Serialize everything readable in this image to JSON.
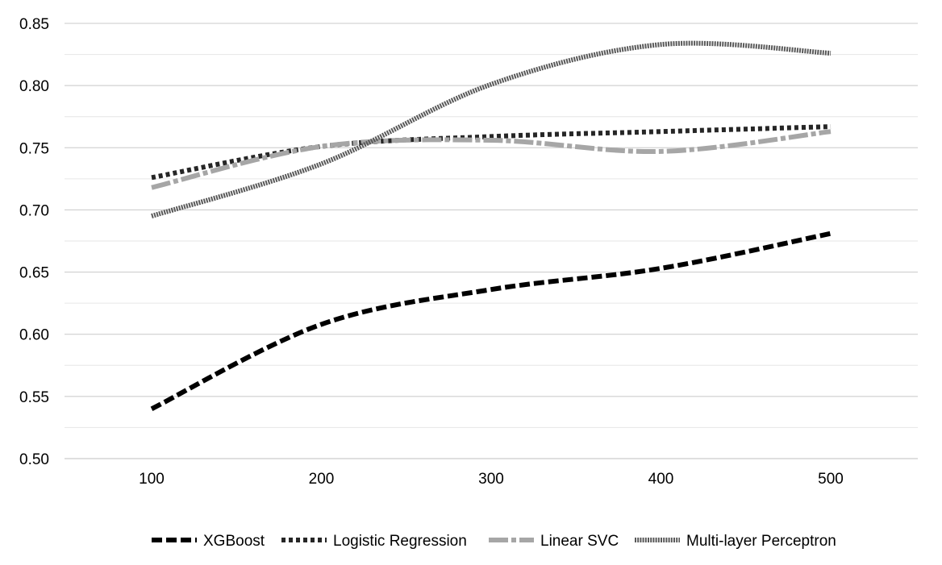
{
  "chart_data": {
    "type": "line",
    "title": "",
    "xlabel": "",
    "ylabel": "",
    "x": [
      100,
      200,
      300,
      400,
      500
    ],
    "x_tick_labels": [
      "100",
      "200",
      "300",
      "400",
      "500"
    ],
    "ylim": [
      0.5,
      0.85
    ],
    "y_tick_labels": [
      "0.50",
      "0.55",
      "0.60",
      "0.65",
      "0.70",
      "0.75",
      "0.80",
      "0.85"
    ],
    "grid": true,
    "legend_position": "bottom",
    "series": [
      {
        "name": "XGBoost",
        "values": [
          0.54,
          0.608,
          0.636,
          0.653,
          0.681
        ],
        "color": "#000000",
        "style": "dash-heavy"
      },
      {
        "name": "Logistic Regression",
        "values": [
          0.726,
          0.751,
          0.759,
          0.763,
          0.767
        ],
        "color": "#262626",
        "style": "dot"
      },
      {
        "name": "Linear SVC",
        "values": [
          0.718,
          0.751,
          0.756,
          0.747,
          0.763
        ],
        "color": "#a6a6a6",
        "style": "long-dash-dot"
      },
      {
        "name": "Multi-layer Perceptron",
        "values": [
          0.695,
          0.737,
          0.801,
          0.833,
          0.826
        ],
        "color": "#595959",
        "style": "fine-dot"
      }
    ]
  }
}
